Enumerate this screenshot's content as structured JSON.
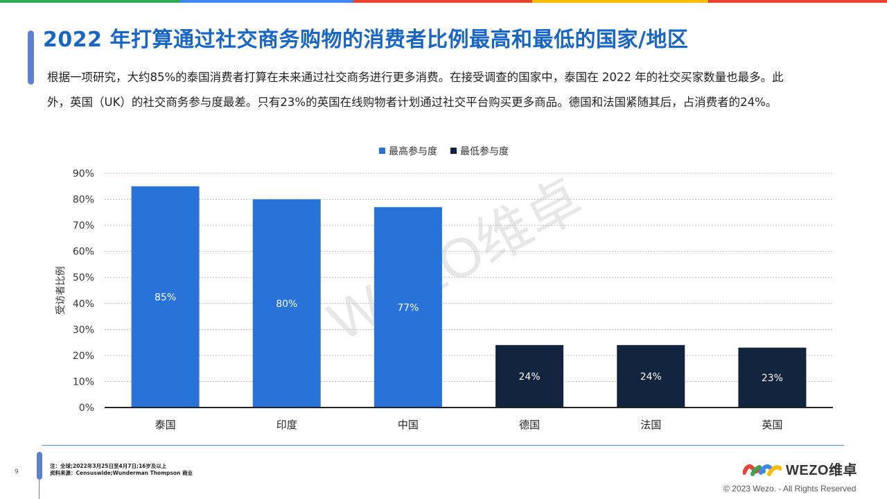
{
  "colors": {
    "top_bar": [
      "#34a853",
      "#4285f4",
      "#ea4335",
      "#fbbc05",
      "#ea4335"
    ],
    "title": "#1766c6",
    "accent": "#5b7fd6",
    "highest": "#2873d9",
    "lowest": "#12243d"
  },
  "header": {
    "title": "2022 年打算通过社交商务购物的消费者比例最高和最低的国家/地区",
    "description": "根据一项研究，大约85%的泰国消费者打算在未来通过社交商务进行更多消费。在接受调查的国家中，泰国在 2022 年的社交买家数量也最多。此外，英国（UK）的社交商务参与度最差。只有23%的英国在线购物者计划通过社交平台购买更多商品。德国和法国紧随其后，占消费者的24%。"
  },
  "chart_data": {
    "type": "bar",
    "categories": [
      "泰国",
      "印度",
      "中国",
      "德国",
      "法国",
      "英国"
    ],
    "values": [
      85,
      80,
      77,
      24,
      24,
      23
    ],
    "value_labels": [
      "85%",
      "80%",
      "77%",
      "24%",
      "24%",
      "23%"
    ],
    "series_assignment": [
      "highest",
      "highest",
      "highest",
      "lowest",
      "lowest",
      "lowest"
    ],
    "series": [
      {
        "key": "highest",
        "name": "最高参与度",
        "color": "#2873d9"
      },
      {
        "key": "lowest",
        "name": "最低参与度",
        "color": "#12243d"
      }
    ],
    "title": "",
    "xlabel": "",
    "ylabel": "受访者比例",
    "ylim": [
      0,
      90
    ],
    "yticks": [
      0,
      10,
      20,
      30,
      40,
      50,
      60,
      70,
      80,
      90
    ],
    "ytick_labels": [
      "0%",
      "10%",
      "20%",
      "30%",
      "40%",
      "50%",
      "60%",
      "70%",
      "80%",
      "90%"
    ],
    "grid": true,
    "legend_position": "top-center"
  },
  "footer": {
    "page_number": "9",
    "note": "注：全球;2022年3月25日至4月7日;16岁及以上",
    "source": "资料来源：Censuswide;Wunderman Thompson 商业",
    "logo_text": "WEZO维卓",
    "copyright": "© 2023 Wezo. - All Rights Reserved"
  },
  "watermark": "WEZO维卓"
}
